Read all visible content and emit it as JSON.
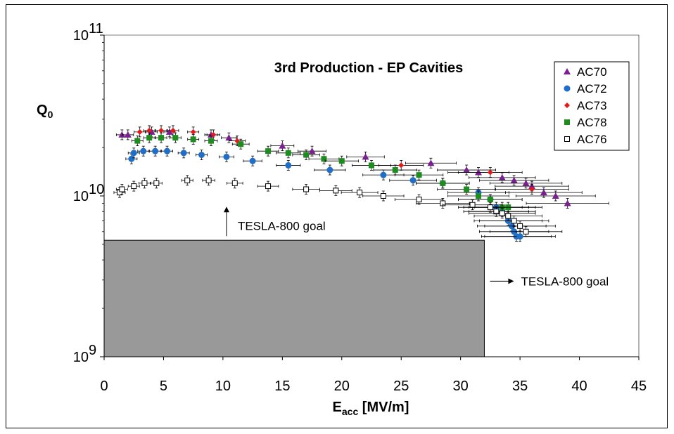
{
  "chart_data": {
    "type": "scatter",
    "title": "3rd  Production - EP Cavities",
    "xlabel": "E",
    "xlabel_sub": "acc",
    "xlabel_unit": " [MV/m]",
    "ylabel": "Q",
    "ylabel_sub": "0",
    "xlim": [
      0,
      45
    ],
    "ylim": [
      1000000000.0,
      100000000000.0
    ],
    "y_scale": "log",
    "x_ticks": [
      "0",
      "5",
      "10",
      "15",
      "20",
      "25",
      "30",
      "35",
      "40",
      "45"
    ],
    "y_ticks": [
      {
        "base": "10",
        "exp": "11",
        "value": 100000000000.0
      },
      {
        "base": "10",
        "exp": "10",
        "value": 10000000000.0
      },
      {
        "base": "10",
        "exp": "9",
        "value": 1000000000.0
      }
    ],
    "grid": false,
    "legend_position": "top-right",
    "goal_region": {
      "x_max": 32,
      "y_max": 5300000000.0,
      "color": "#999999"
    },
    "annotations": [
      {
        "text": "TESLA-800 goal",
        "x": 10.3,
        "y": 7600000000.0,
        "arrow": "up"
      },
      {
        "text": "TESLA-800 goal",
        "x": 32,
        "y": 2950000000.0,
        "arrow": "right"
      }
    ],
    "series": [
      {
        "name": "AC70",
        "marker": "triangle",
        "color": "#7A1F8F",
        "x": [
          1.5,
          2.0,
          4.0,
          5.5,
          9.0,
          10.5,
          15.0,
          17.5,
          22.0,
          27.5,
          30.5,
          31.5,
          33.5,
          34.5,
          35.5,
          36.0,
          37.0,
          38.0,
          39.0
        ],
        "y": [
          24000000000.0,
          24000000000.0,
          25000000000.0,
          25000000000.0,
          24000000000.0,
          23000000000.0,
          20500000000.0,
          19000000000.0,
          17500000000.0,
          16000000000.0,
          14500000000.0,
          14000000000.0,
          13000000000.0,
          12500000000.0,
          12000000000.0,
          11500000000.0,
          10500000000.0,
          10000000000.0,
          9000000000.0
        ]
      },
      {
        "name": "AC72",
        "marker": "circle",
        "color": "#1F6FC9",
        "x": [
          2.3,
          2.5,
          3.3,
          4.3,
          5.3,
          6.7,
          8.2,
          10.3,
          12.5,
          15.5,
          19.0,
          23.5,
          26.0,
          28.5,
          31.5,
          32.5,
          33.0,
          33.5,
          34.0,
          34.3,
          34.5,
          34.7,
          35.0
        ],
        "y": [
          17000000000.0,
          18500000000.0,
          19000000000.0,
          19000000000.0,
          19000000000.0,
          18500000000.0,
          18000000000.0,
          17500000000.0,
          16500000000.0,
          15500000000.0,
          14500000000.0,
          13500000000.0,
          12500000000.0,
          12000000000.0,
          10500000000.0,
          9500000000.0,
          8500000000.0,
          8000000000.0,
          7000000000.0,
          6500000000.0,
          6000000000.0,
          5600000000.0,
          5600000000.0
        ]
      },
      {
        "name": "AC73",
        "marker": "diamond",
        "color": "#E31A1C",
        "x": [
          3.0,
          3.8,
          4.8,
          5.8,
          7.5,
          9.2,
          11.2,
          25.0,
          28.5,
          32.5,
          36.0
        ],
        "y": [
          25000000000.0,
          25500000000.0,
          25500000000.0,
          25500000000.0,
          25000000000.0,
          24000000000.0,
          22000000000.0,
          15500000000.0,
          12000000000.0,
          14000000000.0,
          11000000000.0
        ]
      },
      {
        "name": "AC78",
        "marker": "square",
        "color": "#1E8C1E",
        "x": [
          2.8,
          3.8,
          4.8,
          6.0,
          7.5,
          9.0,
          11.5,
          13.8,
          15.5,
          17.0,
          18.5,
          20.0,
          22.5,
          24.5,
          26.5,
          28.5,
          30.5,
          31.5,
          32.5,
          33.5,
          34.0
        ],
        "y": [
          22000000000.0,
          23000000000.0,
          23000000000.0,
          23000000000.0,
          22500000000.0,
          22000000000.0,
          21000000000.0,
          19000000000.0,
          18500000000.0,
          18000000000.0,
          17000000000.0,
          16500000000.0,
          15500000000.0,
          14500000000.0,
          13500000000.0,
          12000000000.0,
          11000000000.0,
          10000000000.0,
          9500000000.0,
          8500000000.0,
          8500000000.0
        ]
      },
      {
        "name": "AC76",
        "marker": "open-square",
        "color": "#000000",
        "x": [
          1.3,
          1.5,
          2.5,
          3.4,
          4.4,
          7.0,
          8.8,
          11.0,
          13.8,
          17.0,
          19.5,
          21.5,
          23.5,
          26.5,
          28.5,
          31.0,
          32.5,
          33.0,
          33.5,
          34.0,
          34.5,
          35.0,
          35.5
        ],
        "y": [
          10500000000.0,
          11000000000.0,
          11500000000.0,
          12000000000.0,
          12000000000.0,
          12500000000.0,
          12500000000.0,
          12000000000.0,
          11500000000.0,
          11000000000.0,
          10800000000.0,
          10500000000.0,
          10000000000.0,
          9500000000.0,
          9000000000.0,
          8800000000.0,
          8500000000.0,
          8000000000.0,
          7800000000.0,
          7500000000.0,
          7000000000.0,
          6500000000.0,
          6000000000.0
        ]
      }
    ]
  }
}
